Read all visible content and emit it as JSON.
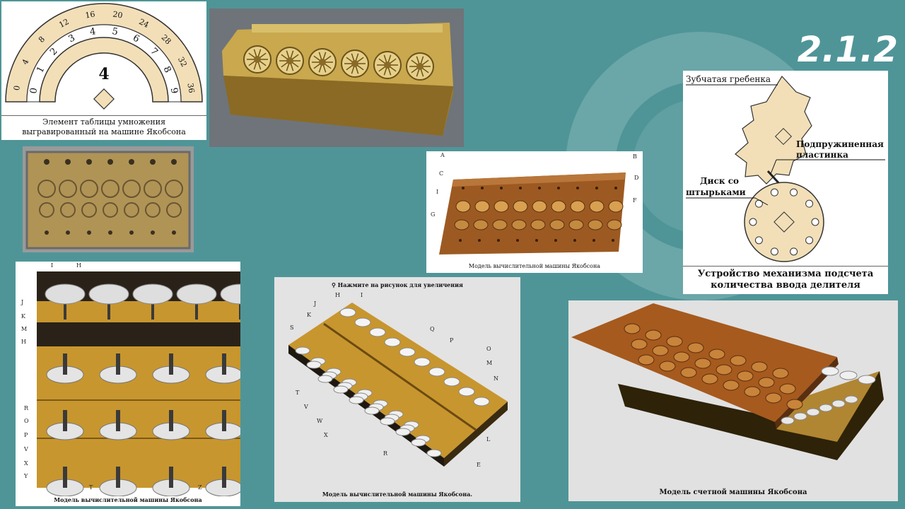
{
  "slide": {
    "number": "2.1.2"
  },
  "multiplication_table": {
    "center_digit": "4",
    "inner_digits": [
      "0",
      "1",
      "2",
      "3",
      "4",
      "5",
      "6",
      "7",
      "8",
      "9"
    ],
    "outer_digits": [
      "0",
      "4",
      "8",
      "12",
      "16",
      "20",
      "24",
      "28",
      "32",
      "36"
    ],
    "caption_line1": "Элемент таблицы умножения",
    "caption_line2": "выгравированный на машине Якобсона"
  },
  "mechanism": {
    "label_rack": "Зубчатая гребенка",
    "label_plate_line1": "Подпружиненная",
    "label_plate_line2": "пластинка",
    "label_disk_line1": "Диск со",
    "label_disk_line2": "штырьками",
    "caption_line1": "Устройство механизма подсчета",
    "caption_line2": "количества ввода делителя"
  },
  "model_top": {
    "caption": "Модель вычислительной машины Якобсона",
    "labels": [
      "A",
      "B",
      "C",
      "D",
      "I",
      "F",
      "G"
    ]
  },
  "model_interior": {
    "caption": "Модель вычислительной машины Якобсона",
    "labels": [
      "I",
      "H",
      "J",
      "K",
      "M",
      "H",
      "R",
      "O",
      "P",
      "V",
      "X",
      "Y",
      "T",
      "Z"
    ]
  },
  "model_open": {
    "hint": "Нажмите на рисунок для увеличения",
    "caption": "Модель вычислительной машины Якобсона.",
    "labels": [
      "H",
      "I",
      "J",
      "K",
      "S",
      "Q",
      "P",
      "O",
      "M",
      "N",
      "T",
      "V",
      "W",
      "X",
      "R",
      "L",
      "E"
    ]
  },
  "model_counting": {
    "caption": "Модель счетной машины Якобсона"
  },
  "colors": {
    "background": "#4f9598",
    "brass": "#b8963c",
    "wood": "#c8962e",
    "beige": "#f2dfb8"
  }
}
